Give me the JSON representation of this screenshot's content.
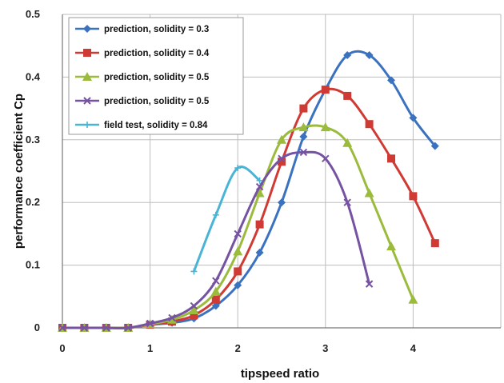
{
  "chart_data": {
    "type": "line",
    "xlabel": "tipspeed ratio",
    "ylabel": "performance coefficient Cp",
    "xlim": [
      0,
      5
    ],
    "ylim": [
      0,
      0.5
    ],
    "x_ticks": [
      "0",
      "1",
      "2",
      "3",
      "4"
    ],
    "y_ticks": [
      "0",
      "0.1",
      "0.2",
      "0.3",
      "0.4",
      "0.5"
    ],
    "grid": true,
    "legend_position": "top-left",
    "series": [
      {
        "name": "prediction, solidity = 0.3",
        "color": "#3b72c0",
        "marker": "diamond",
        "x": [
          0,
          0.25,
          0.5,
          0.75,
          1.0,
          1.25,
          1.5,
          1.75,
          2.0,
          2.25,
          2.5,
          2.75,
          3.0,
          3.25,
          3.5,
          3.75,
          4.0,
          4.25
        ],
        "y": [
          0,
          0,
          0,
          0,
          0.005,
          0.008,
          0.015,
          0.035,
          0.068,
          0.12,
          0.2,
          0.305,
          0.38,
          0.435,
          0.435,
          0.395,
          0.335,
          0.29
        ]
      },
      {
        "name": "prediction, solidity = 0.4",
        "color": "#d03a34",
        "marker": "square",
        "x": [
          0,
          0.25,
          0.5,
          0.75,
          1.0,
          1.25,
          1.5,
          1.75,
          2.0,
          2.25,
          2.5,
          2.75,
          3.0,
          3.25,
          3.5,
          3.75,
          4.0,
          4.25
        ],
        "y": [
          0,
          0,
          0,
          0,
          0.005,
          0.01,
          0.02,
          0.045,
          0.09,
          0.165,
          0.265,
          0.35,
          0.38,
          0.37,
          0.325,
          0.27,
          0.21,
          0.135
        ]
      },
      {
        "name": "prediction, solidity = 0.5",
        "color": "#9bbb3c",
        "marker": "triangle",
        "x": [
          0,
          0.25,
          0.5,
          0.75,
          1.0,
          1.25,
          1.5,
          1.75,
          2.0,
          2.25,
          2.5,
          2.75,
          3.0,
          3.25,
          3.5,
          3.75,
          4.0
        ],
        "y": [
          0,
          0,
          0,
          0,
          0.006,
          0.013,
          0.028,
          0.058,
          0.122,
          0.215,
          0.3,
          0.32,
          0.32,
          0.295,
          0.215,
          0.13,
          0.045
        ]
      },
      {
        "name": "prediction, solidity = 0.5",
        "color": "#7552a2",
        "marker": "cross",
        "x": [
          0,
          0.25,
          0.5,
          0.75,
          1.0,
          1.25,
          1.5,
          1.75,
          2.0,
          2.25,
          2.5,
          2.75,
          3.0,
          3.25,
          3.5
        ],
        "y": [
          0,
          0,
          0,
          0,
          0.007,
          0.016,
          0.035,
          0.075,
          0.15,
          0.225,
          0.27,
          0.28,
          0.27,
          0.2,
          0.07
        ]
      },
      {
        "name": "field test, solidity = 0.84",
        "color": "#4ab4d6",
        "marker": "star",
        "x": [
          1.5,
          1.75,
          2.0,
          2.25
        ],
        "y": [
          0.09,
          0.18,
          0.255,
          0.235
        ]
      }
    ]
  }
}
